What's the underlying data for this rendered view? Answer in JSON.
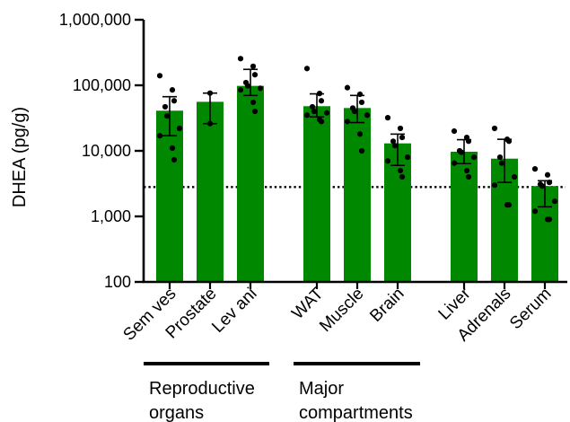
{
  "chart_data": {
    "type": "bar",
    "ylabel": "DHEA (pg/g)",
    "yscale": "log",
    "ylim": [
      100,
      1000000
    ],
    "yticks": [
      100,
      1000,
      10000,
      100000,
      1000000
    ],
    "ytick_labels": [
      "100",
      "1,000",
      "10,000",
      "100,000",
      "1,000,000"
    ],
    "bar_color": "#008800",
    "reference_line": 2800,
    "categories": [
      "Sem ves",
      "Prostate",
      "Lev ani",
      "WAT",
      "Muscle",
      "Brain",
      "Liver",
      "Adrenals",
      "Serum"
    ],
    "values": [
      41000,
      56000,
      98000,
      48000,
      45000,
      13000,
      9700,
      7600,
      2900
    ],
    "error_low": [
      17000,
      26000,
      70000,
      33000,
      27000,
      6000,
      6400,
      3300,
      1400
    ],
    "error_high": [
      67000,
      76000,
      175000,
      74000,
      70000,
      18000,
      14800,
      15000,
      3500
    ],
    "points": [
      [
        140000,
        85000,
        58000,
        47000,
        34000,
        22000,
        17000,
        11000,
        7300
      ],
      [
        76000,
        26000
      ],
      [
        255000,
        195000,
        145000,
        110000,
        98000,
        90000,
        85000,
        55000,
        40000
      ],
      [
        180000,
        75000,
        58000,
        47000,
        40000,
        38000,
        35000,
        30000,
        28000
      ],
      [
        92000,
        73000,
        55000,
        45000,
        40000,
        35000,
        28000,
        18000,
        10000
      ],
      [
        32000,
        22000,
        16000,
        14000,
        12000,
        8000,
        7000,
        5000,
        4000
      ],
      [
        20000,
        16000,
        14000,
        10000,
        9500,
        8000,
        6500,
        5000,
        4000
      ],
      [
        22000,
        15000,
        14000,
        8000,
        6500,
        4000,
        3000,
        1500,
        1500
      ],
      [
        5300,
        4300,
        3300,
        3100,
        2900,
        1700,
        1200,
        900,
        900
      ]
    ],
    "groups": [
      {
        "label_lines": [
          "Reproductive",
          "organs"
        ],
        "from": 0,
        "to": 2
      },
      {
        "label_lines": [
          "Major",
          "compartments"
        ],
        "from": 3,
        "to": 5
      }
    ]
  }
}
